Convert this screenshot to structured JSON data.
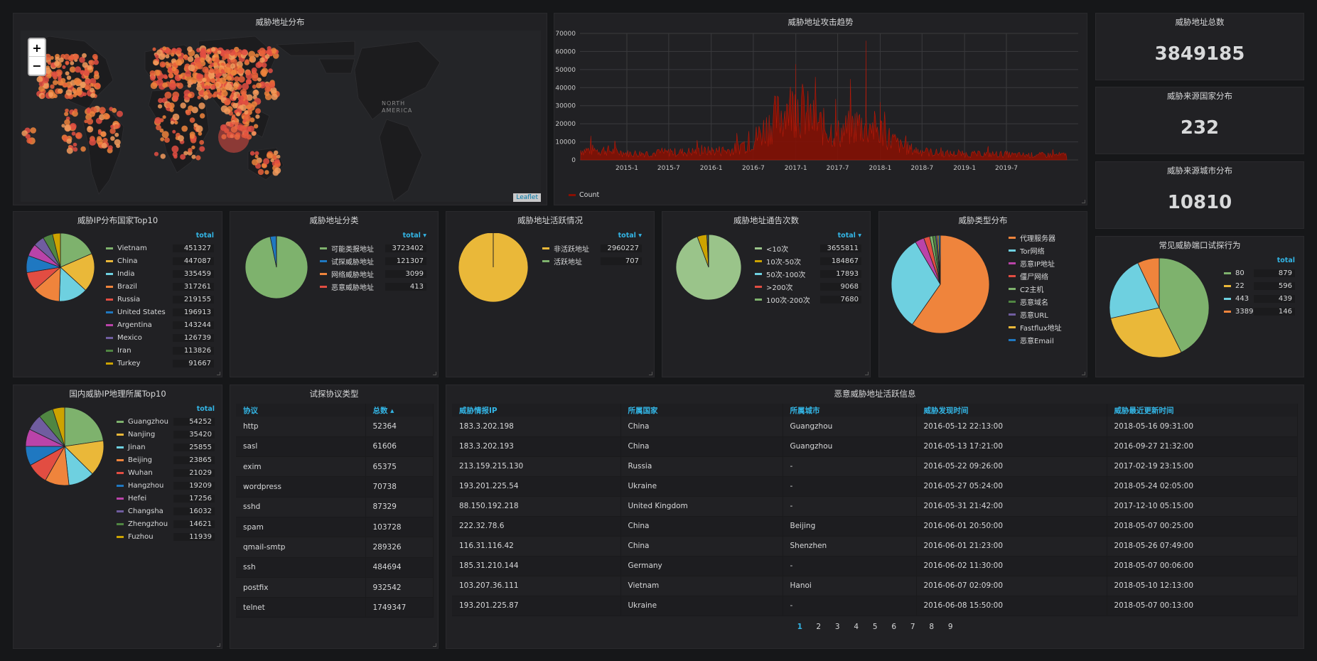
{
  "map_panel": {
    "title": "威胁地址分布",
    "zoom_in": "+",
    "zoom_out": "−",
    "attribution": "Leaflet",
    "label": "NORTH AMERICA"
  },
  "trend_panel": {
    "title": "威胁地址攻击趋势",
    "legend": "Count"
  },
  "stat_total": {
    "title": "威胁地址总数",
    "value": "3849185"
  },
  "stat_country": {
    "title": "威胁来源国家分布",
    "value": "232"
  },
  "stat_city": {
    "title": "威胁来源城市分布",
    "value": "10810"
  },
  "pie_country": {
    "title": "威胁IP分布国家Top10",
    "header": "total"
  },
  "pie_category": {
    "title": "威胁地址分类",
    "header": "total ▾"
  },
  "pie_active": {
    "title": "威胁地址活跃情况",
    "header": "total ▾"
  },
  "pie_report": {
    "title": "威胁地址通告次数",
    "header": "total ▾"
  },
  "pie_type": {
    "title": "威胁类型分布"
  },
  "pie_port": {
    "title": "常见威胁端口试探行为",
    "header": "total"
  },
  "pie_city": {
    "title": "国内威胁IP地理所属Top10",
    "header": "total"
  },
  "protocol_table": {
    "title": "试探协议类型",
    "headers": [
      "协议",
      "总数 ▴"
    ],
    "rows": [
      [
        "http",
        "52364"
      ],
      [
        "sasl",
        "61606"
      ],
      [
        "exim",
        "65375"
      ],
      [
        "wordpress",
        "70738"
      ],
      [
        "sshd",
        "87329"
      ],
      [
        "spam",
        "103728"
      ],
      [
        "qmail-smtp",
        "289326"
      ],
      [
        "ssh",
        "484694"
      ],
      [
        "postfix",
        "932542"
      ],
      [
        "telnet",
        "1749347"
      ]
    ]
  },
  "active_table": {
    "title": "恶意威胁地址活跃信息",
    "headers": [
      "威胁情报IP",
      "所属国家",
      "所属城市",
      "威胁发现时间",
      "威胁最近更新时间"
    ],
    "rows": [
      [
        "183.3.202.198",
        "China",
        "Guangzhou",
        "2016-05-12 22:13:00",
        "2018-05-16 09:31:00"
      ],
      [
        "183.3.202.193",
        "China",
        "Guangzhou",
        "2016-05-13 17:21:00",
        "2016-09-27 21:32:00"
      ],
      [
        "213.159.215.130",
        "Russia",
        "-",
        "2016-05-22 09:26:00",
        "2017-02-19 23:15:00"
      ],
      [
        "193.201.225.54",
        "Ukraine",
        "-",
        "2016-05-27 05:24:00",
        "2018-05-24 02:05:00"
      ],
      [
        "88.150.192.218",
        "United Kingdom",
        "-",
        "2016-05-31 21:42:00",
        "2017-12-10 05:15:00"
      ],
      [
        "222.32.78.6",
        "China",
        "Beijing",
        "2016-06-01 20:50:00",
        "2018-05-07 00:25:00"
      ],
      [
        "116.31.116.42",
        "China",
        "Shenzhen",
        "2016-06-01 21:23:00",
        "2018-05-26 07:49:00"
      ],
      [
        "185.31.210.144",
        "Germany",
        "-",
        "2016-06-02 11:30:00",
        "2018-05-07 00:06:00"
      ],
      [
        "103.207.36.111",
        "Vietnam",
        "Hanoi",
        "2016-06-07 02:09:00",
        "2018-05-10 12:13:00"
      ],
      [
        "193.201.225.87",
        "Ukraine",
        "-",
        "2016-06-08 15:50:00",
        "2018-05-07 00:13:00"
      ]
    ],
    "pages": [
      "1",
      "2",
      "3",
      "4",
      "5",
      "6",
      "7",
      "8",
      "9"
    ]
  },
  "chart_data": [
    {
      "type": "line",
      "title": "威胁地址攻击趋势",
      "x_ticks": [
        "2015-1",
        "2015-7",
        "2016-1",
        "2016-7",
        "2017-1",
        "2017-7",
        "2018-1",
        "2018-7",
        "2019-1",
        "2019-7"
      ],
      "y_ticks": [
        0,
        10000,
        20000,
        30000,
        40000,
        50000,
        60000,
        70000
      ],
      "ylim": [
        0,
        70000
      ],
      "series": [
        {
          "name": "Count",
          "color": "#890f02",
          "x": [
            "2014-10",
            "2015-1",
            "2015-4",
            "2015-7",
            "2015-10",
            "2016-1",
            "2016-4",
            "2016-7",
            "2016-10",
            "2017-1",
            "2017-4",
            "2017-7",
            "2017-10",
            "2018-1",
            "2018-4",
            "2018-7",
            "2018-10",
            "2019-1",
            "2019-4",
            "2019-7",
            "2019-8"
          ],
          "values": [
            6000,
            4000,
            4000,
            4500,
            5000,
            5500,
            6000,
            12000,
            25000,
            34000,
            22000,
            16000,
            22000,
            18000,
            8000,
            5000,
            4000,
            3500,
            3500,
            3500,
            3000
          ],
          "peaks": [
            [
              "2017-1",
              53000
            ],
            [
              "2017-11",
              66000
            ],
            [
              "2018-1",
              32000
            ]
          ]
        }
      ]
    },
    {
      "type": "pie",
      "title": "威胁IP分布国家Top10",
      "labels": [
        "Vietnam",
        "China",
        "India",
        "Brazil",
        "Russia",
        "United States",
        "Argentina",
        "Mexico",
        "Iran",
        "Turkey"
      ],
      "values": [
        451327,
        447087,
        335459,
        317261,
        219155,
        196913,
        143244,
        126739,
        113826,
        91667
      ],
      "colors": [
        "#7eb26d",
        "#eab839",
        "#6ed0e0",
        "#ef843c",
        "#e24d42",
        "#1f78c1",
        "#ba43a9",
        "#705da0",
        "#508642",
        "#cca300"
      ]
    },
    {
      "type": "pie",
      "title": "威胁地址分类",
      "labels": [
        "可能类报地址",
        "试探威胁地址",
        "网络威胁地址",
        "恶意威胁地址"
      ],
      "values": [
        3723402,
        121307,
        3099,
        413
      ],
      "colors": [
        "#7eb26d",
        "#1f78c1",
        "#ef843c",
        "#e24d42"
      ]
    },
    {
      "type": "pie",
      "title": "威胁地址活跃情况",
      "labels": [
        "非活跃地址",
        "活跃地址"
      ],
      "values": [
        2960227,
        707
      ],
      "colors": [
        "#eab839",
        "#7eb26d"
      ]
    },
    {
      "type": "pie",
      "title": "威胁地址通告次数",
      "labels": [
        "<10次",
        "10次-50次",
        "50次-100次",
        ">200次",
        "100次-200次"
      ],
      "values": [
        3655811,
        184867,
        17893,
        9068,
        7680
      ],
      "colors": [
        "#9ac48a",
        "#cca300",
        "#6ed0e0",
        "#e24d42",
        "#7eb26d"
      ]
    },
    {
      "type": "pie",
      "title": "威胁类型分布",
      "labels": [
        "代理服务器",
        "Tor网络",
        "恶意IP地址",
        "僵尸网络",
        "C2主机",
        "恶意域名",
        "恶意URL",
        "Fastflux地址",
        "恶意Email"
      ],
      "values": [
        60,
        32,
        3,
        2,
        1,
        1,
        0.5,
        0.5,
        0.5
      ],
      "colors": [
        "#ef843c",
        "#6ed0e0",
        "#ba43a9",
        "#e24d42",
        "#7eb26d",
        "#508642",
        "#705da0",
        "#eab839",
        "#1f78c1"
      ]
    },
    {
      "type": "pie",
      "title": "常见威胁端口试探行为",
      "labels": [
        "80",
        "22",
        "443",
        "3389"
      ],
      "values": [
        879,
        596,
        439,
        146
      ],
      "colors": [
        "#7eb26d",
        "#eab839",
        "#6ed0e0",
        "#ef843c"
      ]
    },
    {
      "type": "pie",
      "title": "国内威胁IP地理所属Top10",
      "labels": [
        "Guangzhou",
        "Nanjing",
        "Jinan",
        "Beijing",
        "Wuhan",
        "Hangzhou",
        "Hefei",
        "Changsha",
        "Zhengzhou",
        "Fuzhou"
      ],
      "values": [
        54252,
        35420,
        25855,
        23865,
        21029,
        19209,
        17256,
        16032,
        14621,
        11939
      ],
      "colors": [
        "#7eb26d",
        "#eab839",
        "#6ed0e0",
        "#ef843c",
        "#e24d42",
        "#1f78c1",
        "#ba43a9",
        "#705da0",
        "#508642",
        "#cca300"
      ]
    }
  ]
}
